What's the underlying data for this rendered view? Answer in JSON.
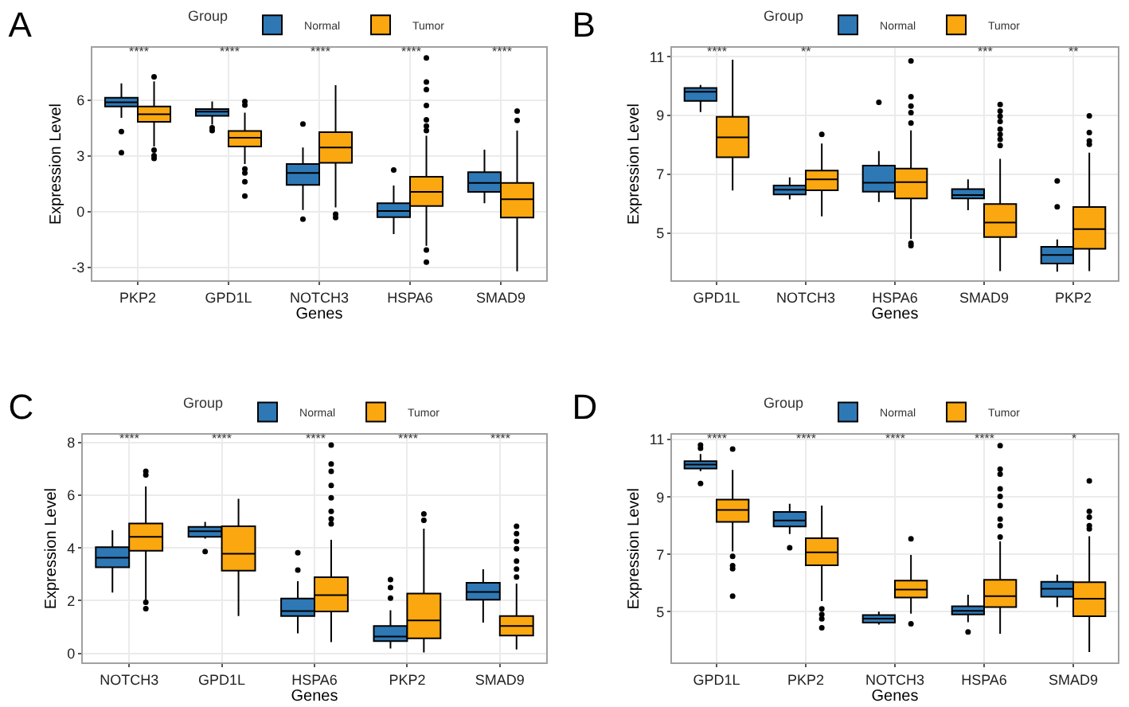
{
  "chart_data": [
    {
      "type": "box",
      "title": "A",
      "xlabel": "Genes",
      "ylabel": "Expression Level",
      "legend_title": "Group",
      "legend": "top",
      "grid": true,
      "ylim": [
        -3.7,
        8.8
      ],
      "yticks": [
        -3,
        0,
        3,
        6
      ],
      "categories": [
        "PKP2",
        "GPD1L",
        "NOTCH3",
        "HSPA6",
        "SMAD9"
      ],
      "series": [
        {
          "name": "Normal",
          "color": "#2e78b5",
          "boxes": [
            {
              "low": 5.04,
              "q1": 5.65,
              "median": 5.87,
              "q3": 6.12,
              "high": 6.89,
              "outliers": [
                4.3,
                3.17
              ]
            },
            {
              "low": 4.68,
              "q1": 5.15,
              "median": 5.37,
              "q3": 5.51,
              "high": 5.92,
              "outliers": [
                4.5,
                4.35
              ]
            },
            {
              "low": 0.08,
              "q1": 1.43,
              "median": 2.07,
              "q3": 2.56,
              "high": 3.44,
              "outliers": [
                4.71,
                -0.41
              ]
            },
            {
              "low": -1.21,
              "q1": -0.3,
              "median": 0.03,
              "q3": 0.44,
              "high": 1.4,
              "outliers": [
                2.23
              ]
            },
            {
              "low": 0.44,
              "q1": 1.05,
              "median": 1.54,
              "q3": 2.12,
              "high": 3.33
            }
          ]
        },
        {
          "name": "Tumor",
          "color": "#fba70f",
          "boxes": [
            {
              "low": 3.5,
              "q1": 4.82,
              "median": 5.23,
              "q3": 5.65,
              "high": 7.0,
              "outliers": [
                7.25,
                3.3,
                3.0,
                2.85
              ]
            },
            {
              "low": 2.56,
              "q1": 3.5,
              "median": 3.97,
              "q3": 4.33,
              "high": 5.32,
              "outliers": [
                5.92,
                5.73,
                2.29,
                2.07,
                1.6,
                0.83
              ]
            },
            {
              "low": 0.22,
              "q1": 2.62,
              "median": 3.44,
              "q3": 4.27,
              "high": 6.8,
              "outliers": [
                -0.14,
                -0.33
              ]
            },
            {
              "low": -1.85,
              "q1": 0.3,
              "median": 1.05,
              "q3": 1.87,
              "high": 4.08,
              "outliers": [
                8.26,
                6.97,
                6.56,
                5.7,
                4.93,
                4.6,
                4.35,
                -2.07,
                -2.73
              ]
            },
            {
              "low": -3.22,
              "q1": -0.33,
              "median": 0.66,
              "q3": 1.54,
              "high": 4.35,
              "outliers": [
                5.4,
                4.9
              ]
            }
          ]
        }
      ],
      "annotations": [
        "****",
        "****",
        "****",
        "****",
        "****"
      ]
    },
    {
      "type": "box",
      "title": "B",
      "xlabel": "Genes",
      "ylabel": "Expression Level",
      "legend_title": "Group",
      "legend": "top",
      "grid": true,
      "ylim": [
        3.4,
        11.3
      ],
      "yticks": [
        5,
        7,
        9,
        11
      ],
      "categories": [
        "GPD1L",
        "NOTCH3",
        "HSPA6",
        "SMAD9",
        "PKP2"
      ],
      "series": [
        {
          "name": "Normal",
          "color": "#2e78b5",
          "boxes": [
            {
              "low": 9.12,
              "q1": 9.5,
              "median": 9.81,
              "q3": 9.94,
              "high": 10.04
            },
            {
              "low": 6.15,
              "q1": 6.32,
              "median": 6.48,
              "q3": 6.62,
              "high": 6.9
            },
            {
              "low": 6.06,
              "q1": 6.41,
              "median": 6.72,
              "q3": 7.3,
              "high": 7.79,
              "outliers": [
                9.45
              ]
            },
            {
              "low": 5.78,
              "q1": 6.18,
              "median": 6.3,
              "q3": 6.5,
              "high": 6.83
            },
            {
              "low": 3.69,
              "q1": 3.97,
              "median": 4.26,
              "q3": 4.54,
              "high": 4.79,
              "outliers": [
                6.78,
                5.9
              ]
            }
          ]
        },
        {
          "name": "Tumor",
          "color": "#fba70f",
          "boxes": [
            {
              "low": 6.45,
              "q1": 7.58,
              "median": 8.26,
              "q3": 8.96,
              "high": 10.9
            },
            {
              "low": 5.57,
              "q1": 6.46,
              "median": 6.83,
              "q3": 7.13,
              "high": 8.05,
              "outliers": [
                8.36
              ]
            },
            {
              "low": 4.8,
              "q1": 6.18,
              "median": 6.74,
              "q3": 7.2,
              "high": 8.5,
              "outliers": [
                10.86,
                9.64,
                9.32,
                9.1,
                8.75,
                4.66,
                4.58
              ]
            },
            {
              "low": 3.71,
              "q1": 4.87,
              "median": 5.36,
              "q3": 5.99,
              "high": 7.53,
              "outliers": [
                9.38,
                9.15,
                8.98,
                8.8,
                8.54,
                8.36,
                8.19,
                7.98
              ]
            },
            {
              "low": 3.71,
              "q1": 4.47,
              "median": 5.14,
              "q3": 5.89,
              "high": 7.74,
              "outliers": [
                8.99,
                8.42,
                8.14,
                8.02
              ]
            }
          ]
        }
      ],
      "annotations": [
        "****",
        "**",
        null,
        "***",
        "**"
      ]
    },
    {
      "type": "box",
      "title": "C",
      "xlabel": "Genes",
      "ylabel": "Expression Level",
      "legend_title": "Group",
      "legend": "top",
      "grid": true,
      "ylim": [
        -0.34,
        8.28
      ],
      "yticks": [
        0,
        2,
        4,
        6,
        8
      ],
      "categories": [
        "NOTCH3",
        "GPD1L",
        "HSPA6",
        "PKP2",
        "SMAD9"
      ],
      "series": [
        {
          "name": "Normal",
          "color": "#2e78b5",
          "boxes": [
            {
              "low": 2.31,
              "q1": 3.27,
              "median": 3.63,
              "q3": 4.03,
              "high": 4.67
            },
            {
              "low": 4.35,
              "q1": 4.42,
              "median": 4.63,
              "q3": 4.8,
              "high": 4.99,
              "outliers": [
                3.86
              ]
            },
            {
              "low": 0.76,
              "q1": 1.42,
              "median": 1.61,
              "q3": 2.08,
              "high": 2.74,
              "outliers": [
                3.82,
                3.16
              ]
            },
            {
              "low": 0.19,
              "q1": 0.47,
              "median": 0.64,
              "q3": 1.04,
              "high": 1.64,
              "outliers": [
                2.8,
                2.5,
                2.1
              ]
            },
            {
              "low": 1.17,
              "q1": 2.04,
              "median": 2.33,
              "q3": 2.68,
              "high": 3.19
            }
          ]
        },
        {
          "name": "Tumor",
          "color": "#fba70f",
          "boxes": [
            {
              "low": 2.04,
              "q1": 3.89,
              "median": 4.42,
              "q3": 4.93,
              "high": 6.33,
              "outliers": [
                6.9,
                6.77,
                1.94,
                1.7
              ]
            },
            {
              "low": 1.42,
              "q1": 3.14,
              "median": 3.78,
              "q3": 4.82,
              "high": 5.86
            },
            {
              "low": 0.43,
              "q1": 1.59,
              "median": 2.21,
              "q3": 2.89,
              "high": 4.31,
              "outliers": [
                7.9,
                7.18,
                6.9,
                6.37,
                5.9,
                5.39,
                5.1,
                4.91
              ]
            },
            {
              "low": 0.04,
              "q1": 0.57,
              "median": 1.25,
              "q3": 2.27,
              "high": 4.73,
              "outliers": [
                5.29,
                5.05
              ]
            },
            {
              "low": 0.15,
              "q1": 0.68,
              "median": 1.04,
              "q3": 1.42,
              "high": 2.65,
              "outliers": [
                4.82,
                4.54,
                4.25,
                3.97,
                3.5,
                3.2,
                2.9
              ]
            }
          ]
        }
      ],
      "annotations": [
        "****",
        "****",
        "****",
        "****",
        "****"
      ]
    },
    {
      "type": "box",
      "title": "D",
      "xlabel": "Genes",
      "ylabel": "Expression Level",
      "legend_title": "Group",
      "legend": "top",
      "grid": true,
      "ylim": [
        3.23,
        11.16
      ],
      "yticks": [
        5,
        7,
        9,
        11
      ],
      "categories": [
        "GPD1L",
        "PKP2",
        "NOTCH3",
        "HSPA6",
        "SMAD9"
      ],
      "series": [
        {
          "name": "Normal",
          "color": "#2e78b5",
          "boxes": [
            {
              "low": 9.9,
              "q1": 9.99,
              "median": 10.13,
              "q3": 10.25,
              "high": 10.5,
              "outliers": [
                10.81,
                10.7,
                9.47
              ]
            },
            {
              "low": 7.71,
              "q1": 7.97,
              "median": 8.18,
              "q3": 8.48,
              "high": 8.76,
              "outliers": [
                7.23
              ]
            },
            {
              "low": 4.55,
              "q1": 4.62,
              "median": 4.76,
              "q3": 4.88,
              "high": 5.0
            },
            {
              "low": 4.63,
              "q1": 4.9,
              "median": 5.03,
              "q3": 5.19,
              "high": 5.59,
              "outliers": [
                4.29
              ]
            },
            {
              "low": 5.16,
              "q1": 5.52,
              "median": 5.8,
              "q3": 6.04,
              "high": 6.29
            }
          ]
        },
        {
          "name": "Tumor",
          "color": "#fba70f",
          "boxes": [
            {
              "low": 7.1,
              "q1": 8.13,
              "median": 8.55,
              "q3": 8.91,
              "high": 9.94,
              "outliers": [
                10.67,
                6.93,
                6.6,
                6.5,
                5.54
              ]
            },
            {
              "low": 5.37,
              "q1": 6.62,
              "median": 7.07,
              "q3": 7.56,
              "high": 8.7,
              "outliers": [
                5.1,
                4.9,
                4.75,
                4.44
              ]
            },
            {
              "low": 4.93,
              "q1": 5.49,
              "median": 5.77,
              "q3": 6.08,
              "high": 6.98,
              "outliers": [
                7.54,
                4.58
              ]
            },
            {
              "low": 4.23,
              "q1": 5.16,
              "median": 5.54,
              "q3": 6.11,
              "high": 7.45,
              "outliers": [
                10.79,
                9.97,
                9.8,
                9.28,
                9.02,
                8.7,
                8.23,
                8.0,
                7.6
              ]
            },
            {
              "low": 3.59,
              "q1": 4.84,
              "median": 5.45,
              "q3": 6.03,
              "high": 7.63,
              "outliers": [
                9.56,
                8.5,
                8.3,
                8.0,
                7.89
              ]
            }
          ]
        }
      ],
      "annotations": [
        "****",
        "****",
        "****",
        "****",
        "*"
      ]
    }
  ]
}
